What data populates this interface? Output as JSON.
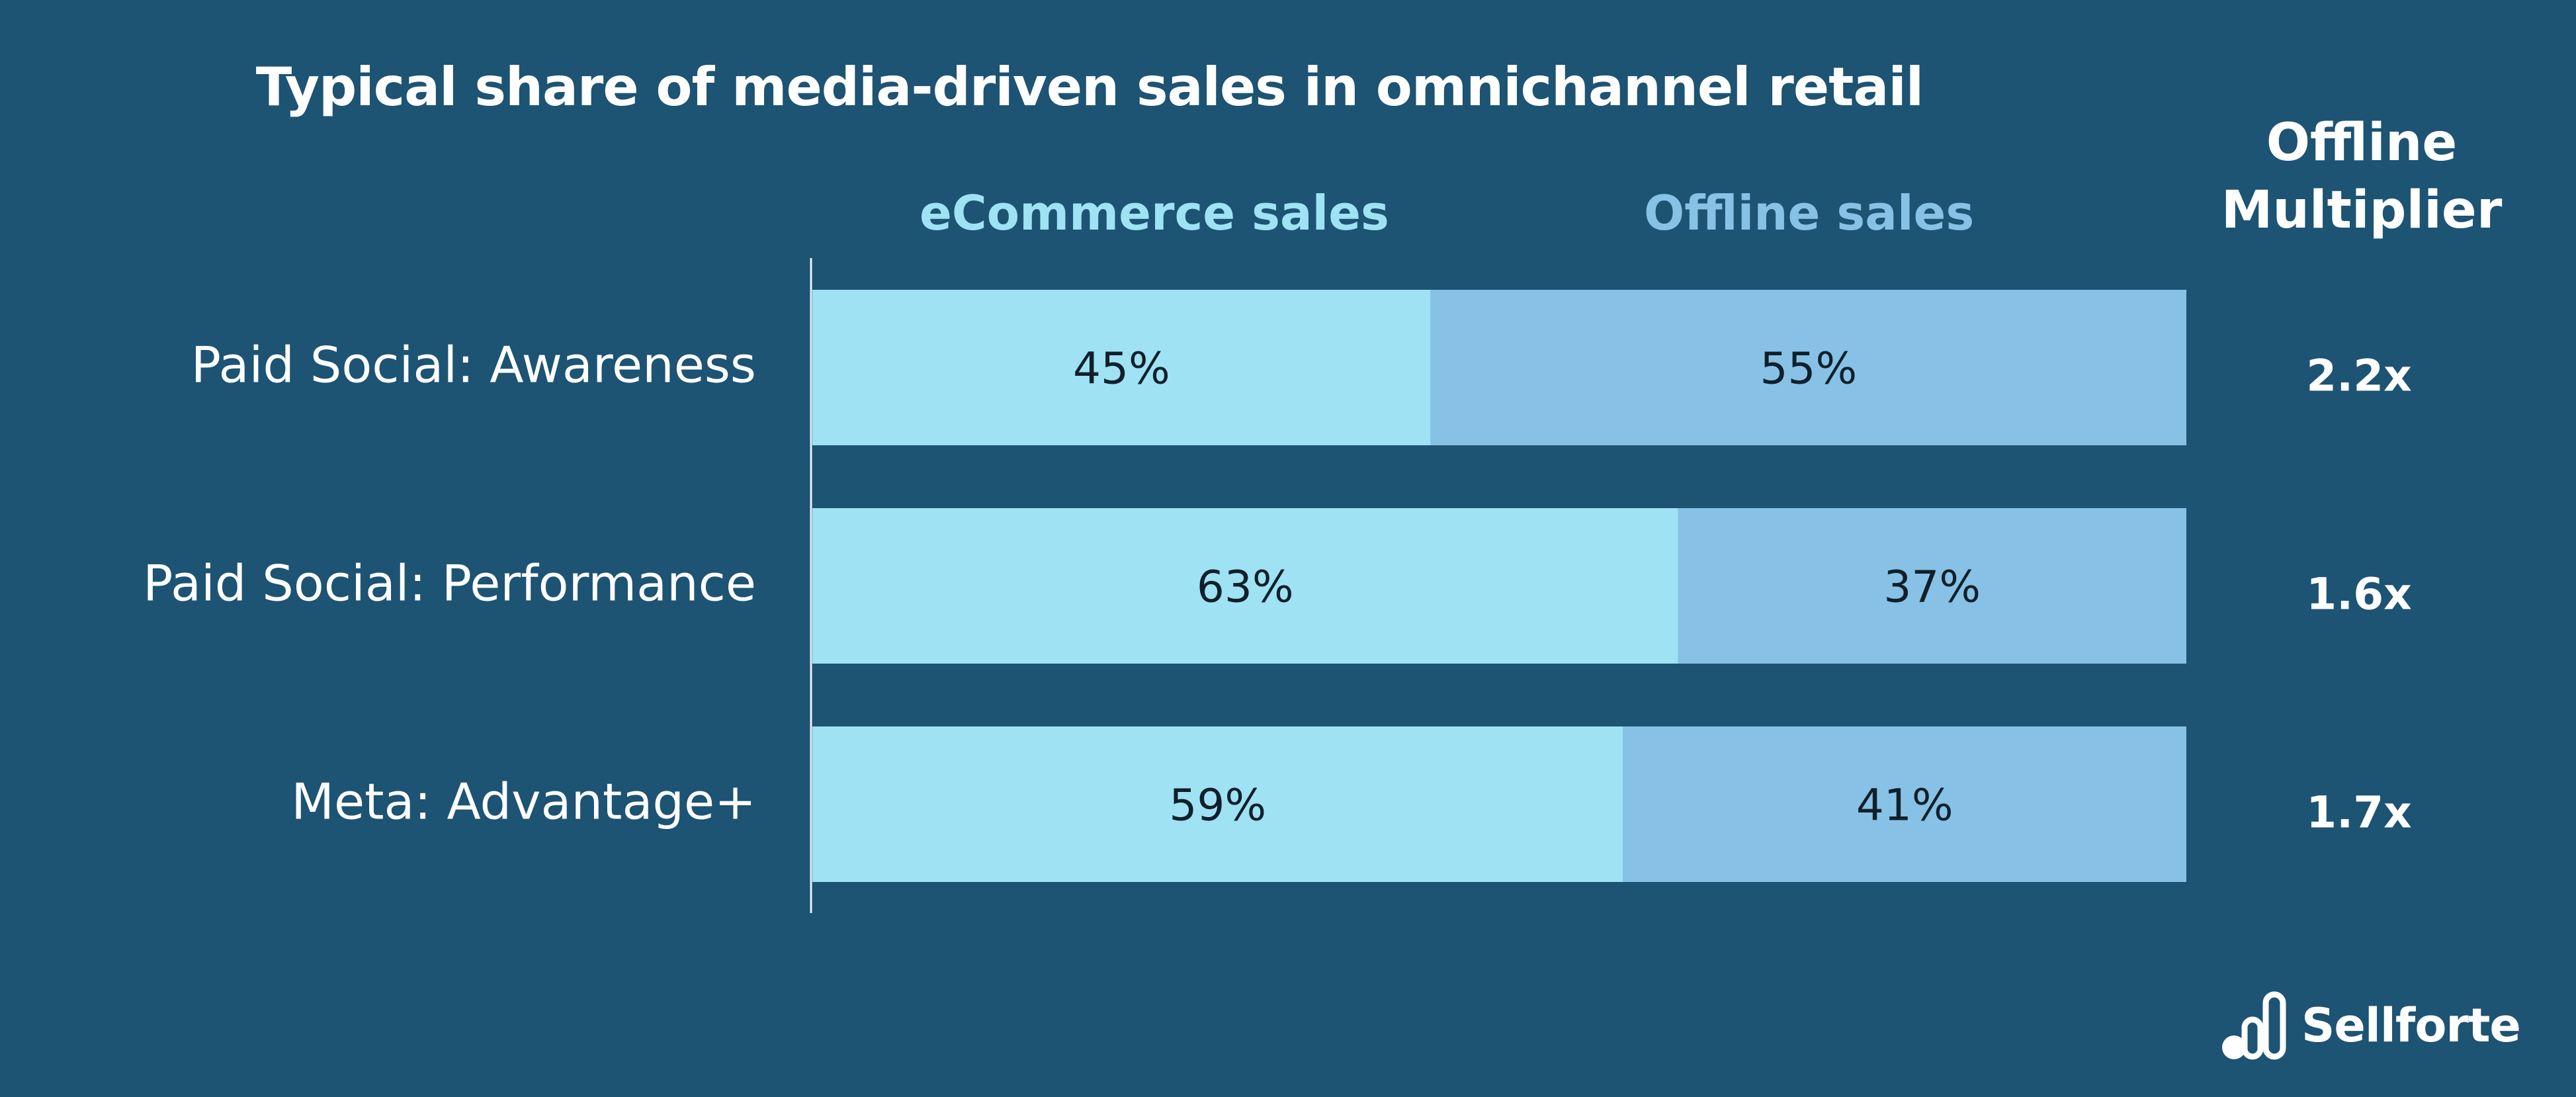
{
  "title": "Typical share of media-driven sales in omnichannel retail",
  "multiplier_header_line1": "Offline",
  "multiplier_header_line2": "Multiplier",
  "brand": {
    "name": "Sellforte",
    "logo_icon": "bar-chart-logo-icon"
  },
  "colors": {
    "background": "#1d5373",
    "ecommerce": "#9fe2f4",
    "offline": "#87c2e6"
  },
  "chart_data": {
    "type": "bar",
    "orientation": "horizontal",
    "stacked": true,
    "title": "Typical share of media-driven sales in omnichannel retail",
    "legend_position": "top",
    "categories": [
      "Paid Social: Awareness",
      "Paid Social: Performance",
      "Meta: Advantage+"
    ],
    "series": [
      {
        "name": "eCommerce sales",
        "values": [
          45,
          63,
          59
        ],
        "labels": [
          "45%",
          "63%",
          "59%"
        ]
      },
      {
        "name": "Offline sales",
        "values": [
          55,
          37,
          41
        ],
        "labels": [
          "55%",
          "37%",
          "41%"
        ]
      }
    ],
    "xlim": [
      0,
      100
    ],
    "grid": false,
    "multiplier_header": "Offline Multiplier",
    "multipliers": [
      "2.2x",
      "1.6x",
      "1.7x"
    ]
  }
}
